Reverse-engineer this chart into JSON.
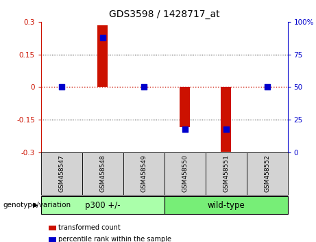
{
  "title": "GDS3598 / 1428717_at",
  "samples": [
    "GSM458547",
    "GSM458548",
    "GSM458549",
    "GSM458550",
    "GSM458551",
    "GSM458552"
  ],
  "red_values": [
    0.002,
    0.283,
    0.002,
    -0.183,
    -0.298,
    0.002
  ],
  "blue_values": [
    50,
    88,
    50,
    18,
    18,
    50
  ],
  "ylim_left": [
    -0.3,
    0.3
  ],
  "ylim_right": [
    0,
    100
  ],
  "yticks_left": [
    -0.3,
    -0.15,
    0,
    0.15,
    0.3
  ],
  "yticks_right": [
    0,
    25,
    50,
    75,
    100
  ],
  "ytick_labels_right": [
    "0",
    "25",
    "50",
    "75",
    "100%"
  ],
  "bar_color": "#cc1100",
  "dot_color": "#0000cc",
  "hline_color": "#cc1100",
  "grid_color": "#000000",
  "background_color": "#ffffff",
  "plot_bg_color": "#ffffff",
  "groups": [
    {
      "label": "p300 +/-",
      "start": 0,
      "end": 3,
      "color": "#aaffaa"
    },
    {
      "label": "wild-type",
      "start": 3,
      "end": 6,
      "color": "#77ee77"
    }
  ],
  "group_label": "genotype/variation",
  "sample_box_color": "#d3d3d3",
  "legend_items": [
    {
      "label": "transformed count",
      "color": "#cc1100"
    },
    {
      "label": "percentile rank within the sample",
      "color": "#0000cc"
    }
  ],
  "bar_width": 0.25,
  "dot_size": 28,
  "title_fontsize": 10,
  "tick_fontsize": 7.5,
  "sample_fontsize": 6.5,
  "group_fontsize": 8.5,
  "legend_fontsize": 7,
  "genotype_label_fontsize": 7.5
}
